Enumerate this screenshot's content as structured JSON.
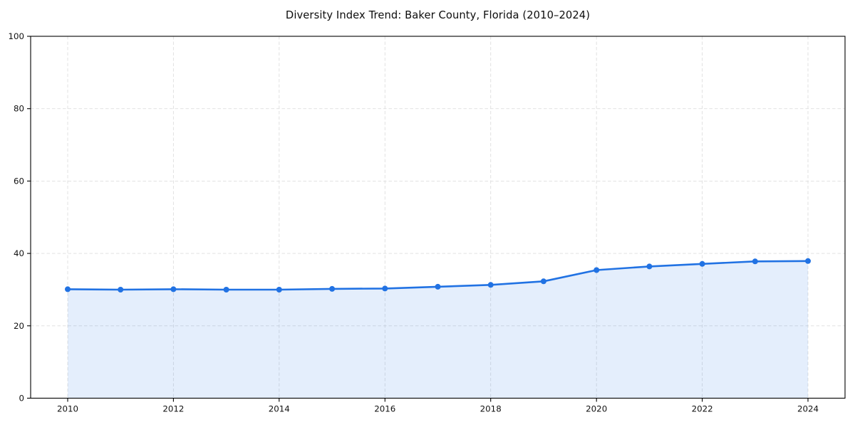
{
  "chart": {
    "title": "Diversity Index Trend: Baker County, Florida (2010–2024)"
  },
  "chart_data": {
    "type": "area",
    "title": "Diversity Index Trend: Baker County, Florida (2010–2024)",
    "xlabel": "",
    "ylabel": "",
    "x": [
      2010,
      2011,
      2012,
      2013,
      2014,
      2015,
      2016,
      2017,
      2018,
      2019,
      2020,
      2021,
      2022,
      2023,
      2024
    ],
    "series": [
      {
        "name": "Diversity Index",
        "values": [
          30.1,
          30.0,
          30.1,
          30.0,
          30.0,
          30.2,
          30.3,
          30.8,
          31.3,
          32.3,
          35.4,
          36.4,
          37.1,
          37.8,
          37.9
        ]
      }
    ],
    "xlim": [
      2009.3,
      2024.7
    ],
    "ylim": [
      0,
      100
    ],
    "x_ticks": [
      2010,
      2012,
      2014,
      2016,
      2018,
      2020,
      2022,
      2024
    ],
    "y_ticks": [
      0,
      20,
      40,
      60,
      80,
      100
    ],
    "grid": "dashed-both-axes",
    "legend": "none",
    "markers": "circle",
    "colors": {
      "line": "#2172e3",
      "marker": "#2172e3",
      "fill": "rgba(33,114,227,0.12)",
      "grid": "#dedede",
      "axis": "#000000",
      "tick_text": "#111111",
      "background": "#ffffff"
    }
  }
}
